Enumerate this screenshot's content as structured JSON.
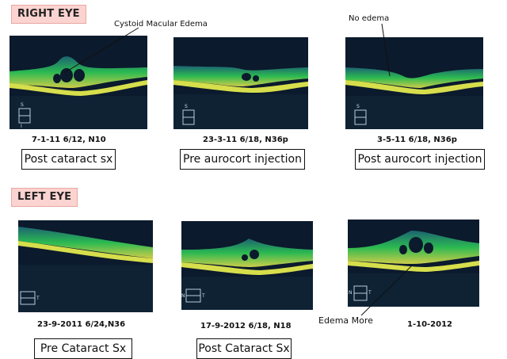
{
  "sections": {
    "right_eye": {
      "title": "RIGHT EYE",
      "annotations": {
        "cme": "Cystoid Macular Edema",
        "no_edema": "No edema"
      },
      "scans": [
        {
          "caption": "7-1-11 6/12, N10",
          "label": "Post cataract sx"
        },
        {
          "caption": "23-3-11 6/18, N36p",
          "label": "Pre aurocort injection"
        },
        {
          "caption": "3-5-11 6/18, N36p",
          "label": "Post aurocort injection"
        }
      ]
    },
    "left_eye": {
      "title": "LEFT EYE",
      "annotations": {
        "edema_more": "Edema More"
      },
      "scans": [
        {
          "caption": "23-9-2011 6/24,N36",
          "label": "Pre Cataract Sx"
        },
        {
          "caption": "17-9-2012 6/18, N18",
          "label": "Post Cataract Sx"
        },
        {
          "caption": "1-10-2012",
          "label": ""
        }
      ]
    }
  },
  "scan_marker_letters": {
    "s": "S",
    "i": "I",
    "n": "N",
    "t": "T"
  },
  "colors": {
    "section_label_bg": "#fbd3d0",
    "scan_bg": "#0b1a2c",
    "retina_band": "#29c64a",
    "rpe_band": "#d6de4c"
  }
}
